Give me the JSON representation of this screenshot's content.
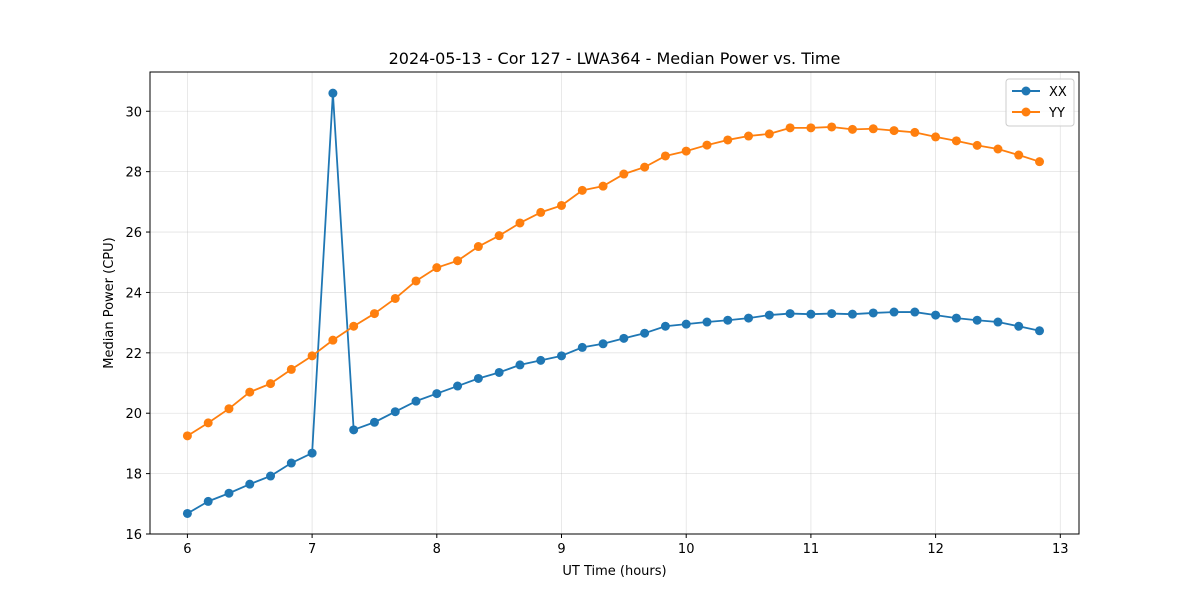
{
  "chart_data": {
    "type": "line",
    "title": "2024-05-13 - Cor 127 - LWA364 - Median Power vs. Time",
    "xlabel": "UT Time (hours)",
    "ylabel": "Median Power (CPU)",
    "xlim": [
      5.7,
      13.15
    ],
    "ylim": [
      16,
      31.3
    ],
    "xticks": [
      6,
      7,
      8,
      9,
      10,
      11,
      12,
      13
    ],
    "yticks": [
      16,
      18,
      20,
      22,
      24,
      26,
      28,
      30
    ],
    "grid": true,
    "legend_position": "top-right",
    "x": [
      6.0,
      6.1667,
      6.3333,
      6.5,
      6.6667,
      6.8333,
      7.0,
      7.1667,
      7.3333,
      7.5,
      7.6667,
      7.8333,
      8.0,
      8.1667,
      8.3333,
      8.5,
      8.6667,
      8.8333,
      9.0,
      9.1667,
      9.3333,
      9.5,
      9.6667,
      9.8333,
      10.0,
      10.1667,
      10.3333,
      10.5,
      10.6667,
      10.8333,
      11.0,
      11.1667,
      11.3333,
      11.5,
      11.6667,
      11.8333,
      12.0,
      12.1667,
      12.3333,
      12.5,
      12.6667,
      12.8333
    ],
    "series": [
      {
        "name": "XX",
        "color": "#1f77b4",
        "values": [
          16.68,
          17.08,
          17.35,
          17.65,
          17.92,
          18.35,
          18.68,
          30.6,
          19.45,
          19.7,
          20.05,
          20.4,
          20.65,
          20.9,
          21.15,
          21.35,
          21.6,
          21.75,
          21.9,
          22.18,
          22.3,
          22.48,
          22.65,
          22.88,
          22.95,
          23.02,
          23.08,
          23.15,
          23.25,
          23.3,
          23.28,
          23.3,
          23.28,
          23.32,
          23.35,
          23.35,
          23.25,
          23.15,
          23.08,
          23.02,
          22.88,
          22.73
        ]
      },
      {
        "name": "YY",
        "color": "#ff7f0e",
        "values": [
          19.25,
          19.68,
          20.15,
          20.7,
          20.98,
          21.45,
          21.9,
          22.42,
          22.88,
          23.3,
          23.8,
          24.38,
          24.82,
          25.05,
          25.52,
          25.88,
          26.3,
          26.65,
          26.88,
          27.38,
          27.52,
          27.92,
          28.15,
          28.52,
          28.68,
          28.88,
          29.05,
          29.18,
          29.25,
          29.45,
          29.45,
          29.48,
          29.4,
          29.42,
          29.36,
          29.3,
          29.15,
          29.02,
          28.87,
          28.75,
          28.55,
          28.33
        ]
      }
    ]
  }
}
